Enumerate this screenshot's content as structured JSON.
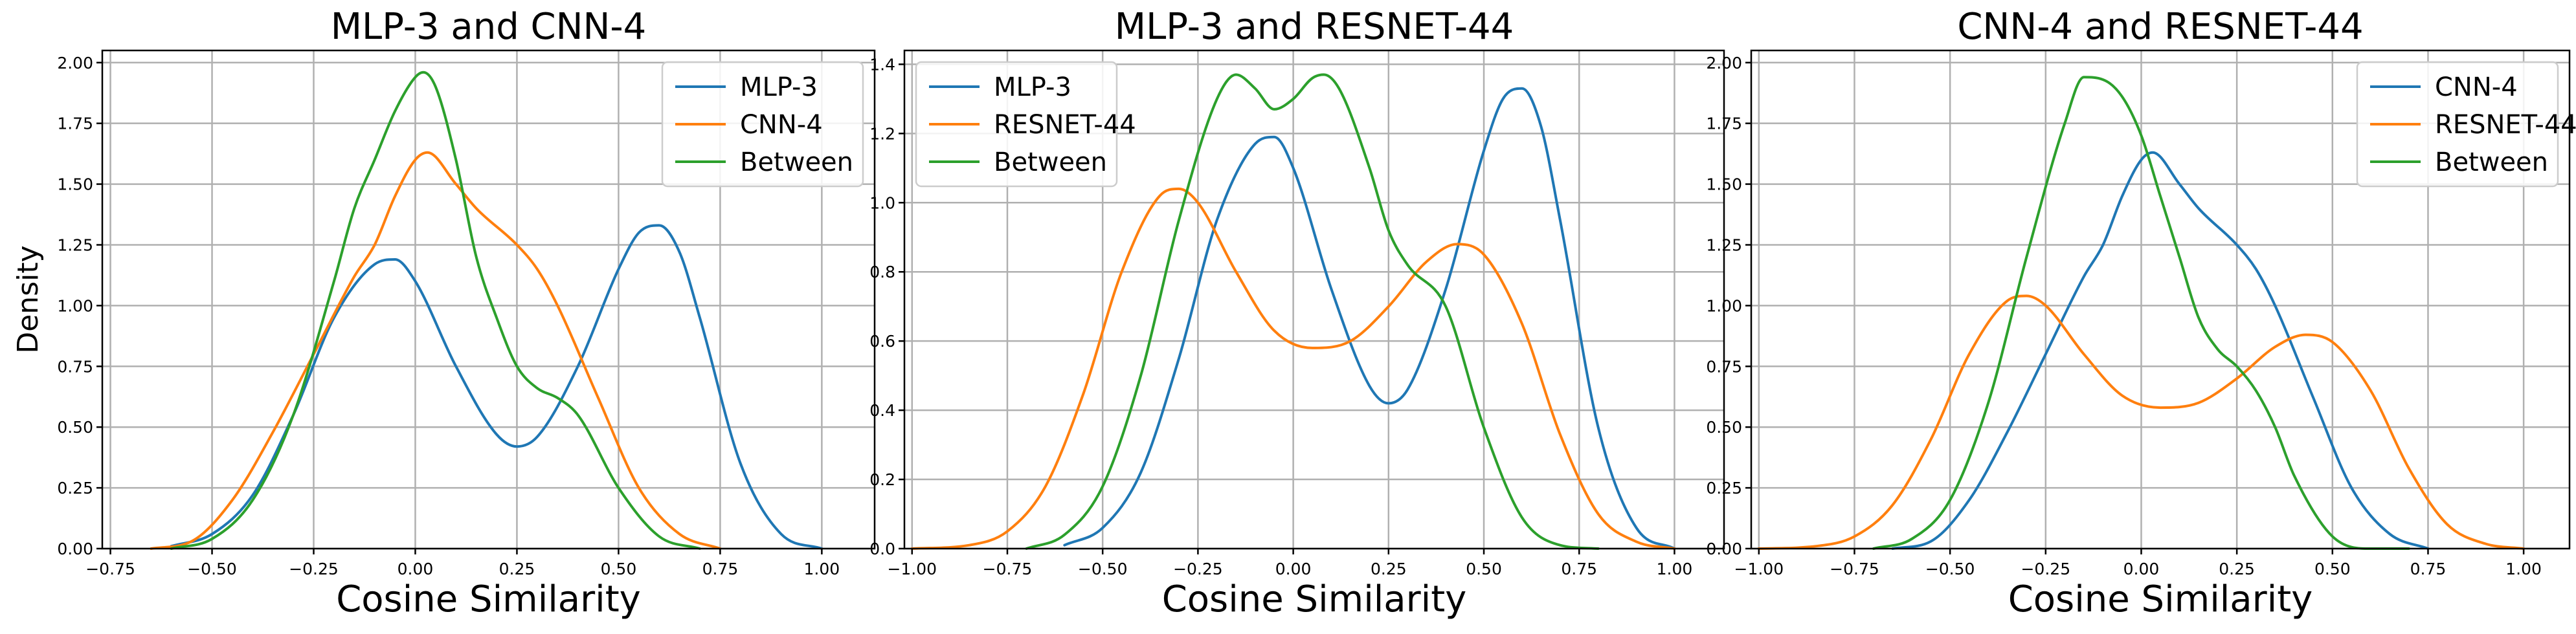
{
  "chart_data": [
    {
      "type": "line",
      "title": "MLP-3 and CNN-4",
      "xlabel": "Cosine Similarity",
      "ylabel": "Density",
      "xlim": [
        -0.77,
        1.13
      ],
      "ylim": [
        0,
        2.05
      ],
      "xticks": [
        -0.75,
        -0.5,
        -0.25,
        0.0,
        0.25,
        0.5,
        0.75,
        1.0
      ],
      "xtick_labels": [
        "−0.75",
        "−0.50",
        "−0.25",
        "0.00",
        "0.25",
        "0.50",
        "0.75",
        "1.00"
      ],
      "yticks": [
        0,
        0.25,
        0.5,
        0.75,
        1.0,
        1.25,
        1.5,
        1.75,
        2.0
      ],
      "ytick_labels": [
        "0.00",
        "0.25",
        "0.50",
        "0.75",
        "1.00",
        "1.25",
        "1.50",
        "1.75",
        "2.00"
      ],
      "grid": true,
      "legend_position": "upper right",
      "series": [
        {
          "name": "MLP-3",
          "color": "#1f77b4",
          "x": [
            -0.6,
            -0.5,
            -0.4,
            -0.3,
            -0.2,
            -0.1,
            -0.05,
            0.0,
            0.1,
            0.2,
            0.25,
            0.3,
            0.4,
            0.5,
            0.55,
            0.6,
            0.65,
            0.7,
            0.8,
            0.9,
            1.0
          ],
          "y": [
            0.01,
            0.06,
            0.22,
            0.55,
            0.95,
            1.17,
            1.19,
            1.1,
            0.75,
            0.47,
            0.42,
            0.46,
            0.75,
            1.15,
            1.3,
            1.33,
            1.22,
            0.95,
            0.35,
            0.06,
            0.0
          ]
        },
        {
          "name": "CNN-4",
          "color": "#ff7f0e",
          "x": [
            -0.65,
            -0.55,
            -0.45,
            -0.35,
            -0.25,
            -0.15,
            -0.1,
            -0.05,
            0.0,
            0.03,
            0.1,
            0.15,
            0.25,
            0.3,
            0.35,
            0.45,
            0.55,
            0.65,
            0.75
          ],
          "y": [
            0.0,
            0.03,
            0.2,
            0.48,
            0.8,
            1.12,
            1.25,
            1.45,
            1.6,
            1.63,
            1.5,
            1.4,
            1.25,
            1.15,
            1.0,
            0.62,
            0.25,
            0.06,
            0.0
          ]
        },
        {
          "name": "Between",
          "color": "#2ca02c",
          "x": [
            -0.6,
            -0.5,
            -0.4,
            -0.3,
            -0.2,
            -0.15,
            -0.1,
            -0.05,
            0.0,
            0.02,
            0.05,
            0.1,
            0.15,
            0.2,
            0.25,
            0.3,
            0.35,
            0.4,
            0.5,
            0.6,
            0.7
          ],
          "y": [
            0.0,
            0.04,
            0.2,
            0.55,
            1.1,
            1.4,
            1.6,
            1.8,
            1.94,
            1.96,
            1.9,
            1.6,
            1.2,
            0.95,
            0.75,
            0.66,
            0.62,
            0.55,
            0.25,
            0.05,
            0.0
          ]
        }
      ]
    },
    {
      "type": "line",
      "title": "MLP-3 and RESNET-44",
      "xlabel": "Cosine Similarity",
      "ylabel": "",
      "xlim": [
        -1.02,
        1.13
      ],
      "ylim": [
        0,
        1.44
      ],
      "xticks": [
        -1.0,
        -0.75,
        -0.5,
        -0.25,
        0.0,
        0.25,
        0.5,
        0.75,
        1.0
      ],
      "xtick_labels": [
        "−1.00",
        "−0.75",
        "−0.50",
        "−0.25",
        "0.00",
        "0.25",
        "0.50",
        "0.75",
        "1.00"
      ],
      "yticks": [
        0,
        0.2,
        0.4,
        0.6,
        0.8,
        1.0,
        1.2,
        1.4
      ],
      "ytick_labels": [
        "0.0",
        "0.2",
        "0.4",
        "0.6",
        "0.8",
        "1.0",
        "1.2",
        "1.4"
      ],
      "grid": true,
      "legend_position": "upper left",
      "series": [
        {
          "name": "MLP-3",
          "color": "#1f77b4",
          "x": [
            -0.6,
            -0.5,
            -0.4,
            -0.3,
            -0.2,
            -0.1,
            -0.05,
            0.0,
            0.1,
            0.2,
            0.25,
            0.3,
            0.4,
            0.5,
            0.55,
            0.6,
            0.65,
            0.7,
            0.8,
            0.9,
            1.0
          ],
          "y": [
            0.01,
            0.06,
            0.22,
            0.55,
            0.95,
            1.17,
            1.19,
            1.1,
            0.75,
            0.47,
            0.42,
            0.46,
            0.75,
            1.15,
            1.3,
            1.33,
            1.22,
            0.95,
            0.35,
            0.06,
            0.0
          ]
        },
        {
          "name": "RESNET-44",
          "color": "#ff7f0e",
          "x": [
            -1.0,
            -0.85,
            -0.75,
            -0.65,
            -0.55,
            -0.45,
            -0.35,
            -0.3,
            -0.25,
            -0.15,
            -0.05,
            0.05,
            0.15,
            0.25,
            0.35,
            0.43,
            0.5,
            0.6,
            0.7,
            0.8,
            0.9,
            1.0
          ],
          "y": [
            0.0,
            0.01,
            0.05,
            0.18,
            0.45,
            0.8,
            1.02,
            1.04,
            1.0,
            0.8,
            0.63,
            0.58,
            0.6,
            0.7,
            0.83,
            0.88,
            0.85,
            0.65,
            0.33,
            0.1,
            0.02,
            0.0
          ]
        },
        {
          "name": "Between",
          "color": "#2ca02c",
          "x": [
            -0.7,
            -0.6,
            -0.5,
            -0.4,
            -0.3,
            -0.2,
            -0.15,
            -0.1,
            -0.05,
            0.0,
            0.05,
            0.08,
            0.12,
            0.2,
            0.25,
            0.3,
            0.4,
            0.5,
            0.6,
            0.7,
            0.8
          ],
          "y": [
            0.0,
            0.04,
            0.18,
            0.5,
            0.95,
            1.3,
            1.37,
            1.33,
            1.27,
            1.3,
            1.36,
            1.37,
            1.33,
            1.1,
            0.92,
            0.82,
            0.7,
            0.35,
            0.09,
            0.01,
            0.0
          ]
        }
      ]
    },
    {
      "type": "line",
      "title": "CNN-4 and RESNET-44",
      "xlabel": "Cosine Similarity",
      "ylabel": "",
      "xlim": [
        -1.02,
        1.12
      ],
      "ylim": [
        0,
        2.05
      ],
      "xticks": [
        -1.0,
        -0.75,
        -0.5,
        -0.25,
        0.0,
        0.25,
        0.5,
        0.75,
        1.0
      ],
      "xtick_labels": [
        "−1.00",
        "−0.75",
        "−0.50",
        "−0.25",
        "0.00",
        "0.25",
        "0.50",
        "0.75",
        "1.00"
      ],
      "yticks": [
        0,
        0.25,
        0.5,
        0.75,
        1.0,
        1.25,
        1.5,
        1.75,
        2.0
      ],
      "ytick_labels": [
        "0.00",
        "0.25",
        "0.50",
        "0.75",
        "1.00",
        "1.25",
        "1.50",
        "1.75",
        "2.00"
      ],
      "grid": true,
      "legend_position": "upper right",
      "series": [
        {
          "name": "CNN-4",
          "color": "#1f77b4",
          "x": [
            -0.65,
            -0.55,
            -0.45,
            -0.35,
            -0.25,
            -0.15,
            -0.1,
            -0.05,
            0.0,
            0.03,
            0.1,
            0.15,
            0.25,
            0.3,
            0.35,
            0.45,
            0.55,
            0.65,
            0.75
          ],
          "y": [
            0.0,
            0.03,
            0.2,
            0.48,
            0.8,
            1.12,
            1.25,
            1.45,
            1.6,
            1.63,
            1.5,
            1.4,
            1.25,
            1.15,
            1.0,
            0.62,
            0.25,
            0.06,
            0.0
          ]
        },
        {
          "name": "RESNET-44",
          "color": "#ff7f0e",
          "x": [
            -1.0,
            -0.85,
            -0.75,
            -0.65,
            -0.55,
            -0.45,
            -0.35,
            -0.3,
            -0.25,
            -0.15,
            -0.05,
            0.05,
            0.15,
            0.25,
            0.35,
            0.43,
            0.5,
            0.6,
            0.7,
            0.8,
            0.9,
            1.0
          ],
          "y": [
            0.0,
            0.01,
            0.05,
            0.18,
            0.45,
            0.8,
            1.02,
            1.04,
            1.0,
            0.8,
            0.63,
            0.58,
            0.6,
            0.7,
            0.83,
            0.88,
            0.85,
            0.65,
            0.33,
            0.1,
            0.02,
            0.0
          ]
        },
        {
          "name": "Between",
          "color": "#2ca02c",
          "x": [
            -0.7,
            -0.6,
            -0.5,
            -0.4,
            -0.3,
            -0.2,
            -0.15,
            -0.1,
            -0.05,
            0.0,
            0.05,
            0.1,
            0.15,
            0.2,
            0.25,
            0.3,
            0.35,
            0.4,
            0.5,
            0.6,
            0.7
          ],
          "y": [
            0.0,
            0.04,
            0.2,
            0.6,
            1.2,
            1.75,
            1.94,
            1.93,
            1.86,
            1.7,
            1.45,
            1.2,
            0.95,
            0.82,
            0.75,
            0.65,
            0.5,
            0.3,
            0.05,
            0.0,
            0.0
          ]
        }
      ]
    }
  ]
}
